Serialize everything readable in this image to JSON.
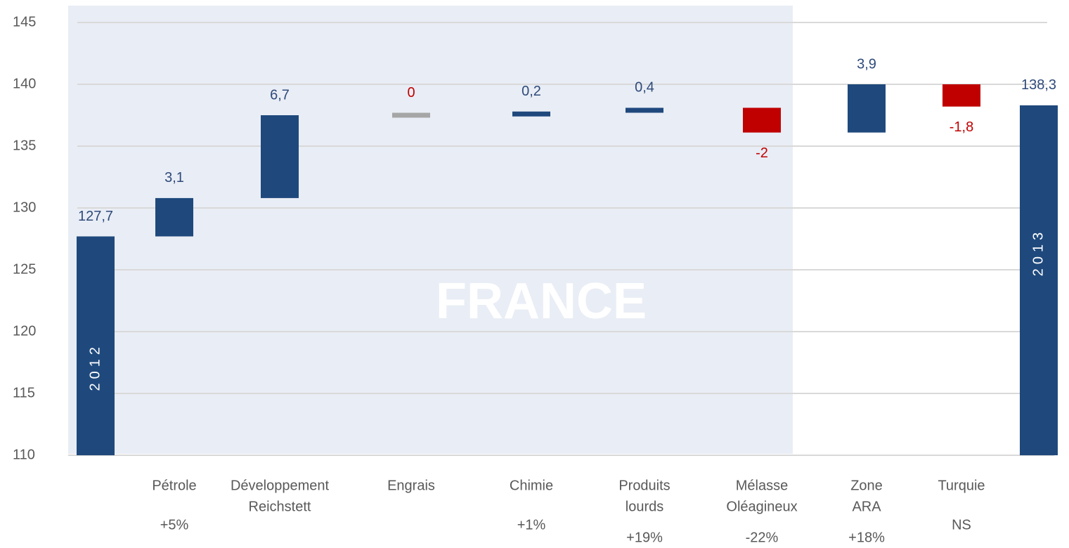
{
  "chart_data": {
    "type": "waterfall",
    "annotation": "FRANCE",
    "categories": [
      [
        "2012"
      ],
      [
        "Pétrole"
      ],
      [
        "Développement",
        "Reichstett"
      ],
      [
        "Engrais"
      ],
      [
        "Chimie"
      ],
      [
        "Produits",
        "lourds"
      ],
      [
        "Mélasse",
        "Oléagineux"
      ],
      [
        "Zone",
        "ARA"
      ],
      [
        "Turquie"
      ],
      [
        "2013"
      ]
    ],
    "kinds": [
      "total",
      "delta",
      "delta",
      "delta",
      "delta",
      "delta",
      "delta",
      "delta",
      "delta",
      "total"
    ],
    "values": [
      127.7,
      3.1,
      6.7,
      0,
      0.2,
      0.4,
      -2,
      3.9,
      -1.8,
      138.3
    ],
    "value_labels": [
      "127,7",
      "3,1",
      "6,7",
      "0",
      "0,2",
      "0,4",
      "-2",
      "3,9",
      "-1,8",
      "138,3"
    ],
    "changes": [
      null,
      "+5%",
      null,
      null,
      "+1%",
      "+19%",
      "-22%",
      "+18%",
      "NS",
      null
    ],
    "colors": [
      "#1f497d",
      "#1f497d",
      "#1f497d",
      "#a6a6a6",
      "#1f497d",
      "#1f497d",
      "#c00000",
      "#1f497d",
      "#c00000",
      "#1f497d"
    ],
    "ylim": [
      110,
      145
    ],
    "yticks": [
      110,
      115,
      120,
      125,
      130,
      135,
      140,
      145
    ],
    "grid": true
  }
}
